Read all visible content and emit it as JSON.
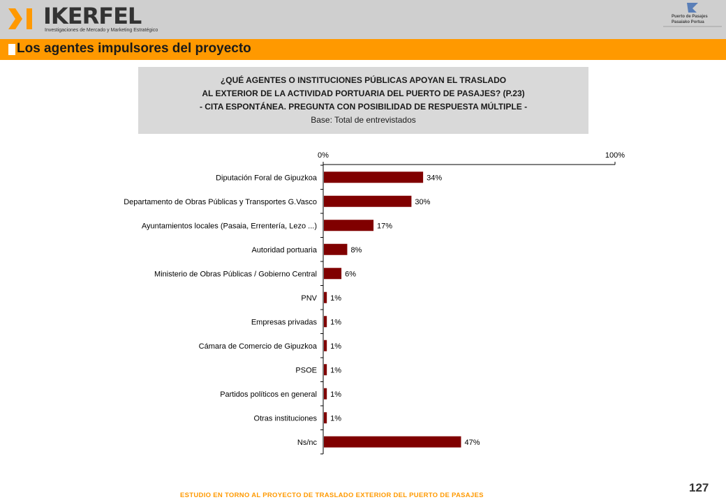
{
  "header": {
    "brand": "IKERFEL",
    "tagline": "Investigaciones de Mercado y Marketing Estratégico",
    "partner_logo": {
      "line1": "Puerto de Pasajes",
      "line2": "Pasaiako Portua"
    }
  },
  "title": "Los agentes impulsores del proyecto",
  "question": {
    "line1": "¿QUÉ AGENTES O INSTITUCIONES PÚBLICAS APOYAN EL TRASLADO",
    "line2": "AL EXTERIOR DE LA ACTIVIDAD PORTUARIA DEL PUERTO DE PASAJES? (P.23)",
    "line3": "- CITA ESPONTÁNEA. PREGUNTA CON POSIBILIDAD DE RESPUESTA MÚLTIPLE -",
    "base": "Base: Total de entrevistados"
  },
  "chart_data": {
    "type": "bar",
    "orientation": "horizontal",
    "categories": [
      "Diputación Foral de Gipuzkoa",
      "Departamento de Obras Públicas y Transportes G.Vasco",
      "Ayuntamientos locales (Pasaia, Errentería, Lezo ...)",
      "Autoridad portuaria",
      "Ministerio de Obras Públicas / Gobierno Central",
      "PNV",
      "Empresas privadas",
      "Cámara de Comercio de Gipuzkoa",
      "PSOE",
      "Partidos políticos en general",
      "Otras instituciones",
      "Ns/nc"
    ],
    "values": [
      34,
      30,
      17,
      8,
      6,
      1,
      1,
      1,
      1,
      1,
      1,
      47
    ],
    "value_labels": [
      "34%",
      "30%",
      "17%",
      "8%",
      "6%",
      "1%",
      "1%",
      "1%",
      "1%",
      "1%",
      "1%",
      "47%"
    ],
    "xlim": [
      0,
      100
    ],
    "axis_tick_labels": [
      "0%",
      "100%"
    ],
    "axis_position": "top",
    "bar_color": "#800000",
    "grid": false
  },
  "footer": {
    "study": "ESTUDIO EN TORNO AL PROYECTO DE TRASLADO EXTERIOR DEL PUERTO DE PASAJES",
    "page_number": "127"
  },
  "colors": {
    "accent": "#ff9900",
    "header_bg": "#cfcfcf",
    "question_bg": "#d9d9d9",
    "bar": "#800000"
  }
}
